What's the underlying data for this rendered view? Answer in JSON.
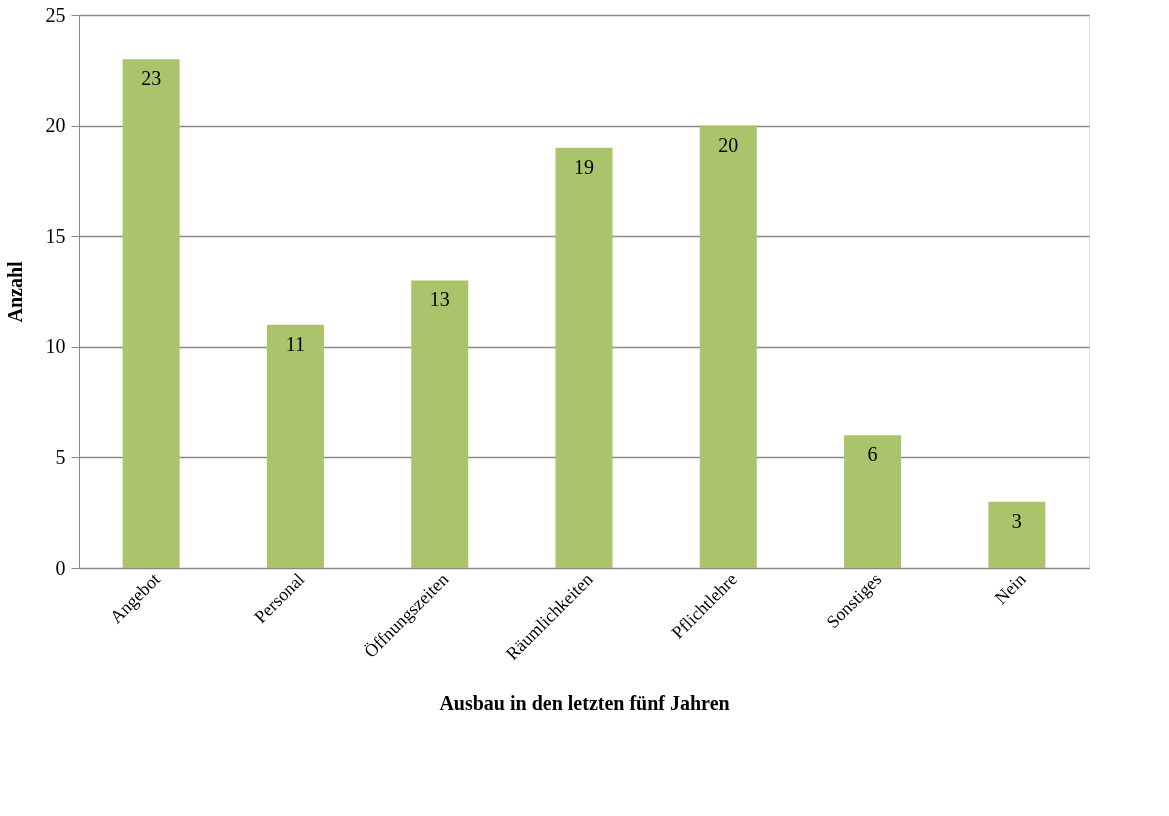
{
  "chart_data": {
    "type": "bar",
    "xlabel": "Ausbau in den letzten fünf Jahren",
    "ylabel": "Anzahl",
    "categories": [
      "Angebot",
      "Personal",
      "Öffnungszeiten",
      "Räumlichkeiten",
      "Pflichtlehre",
      "Sonstiges",
      "Nein"
    ],
    "values": [
      23,
      11,
      13,
      19,
      20,
      6,
      3
    ],
    "color": "#a9c46a",
    "ylim": [
      0,
      25
    ],
    "yticks": [
      0,
      5,
      10,
      15,
      20,
      25
    ],
    "grid": "y",
    "data_labels": true
  }
}
